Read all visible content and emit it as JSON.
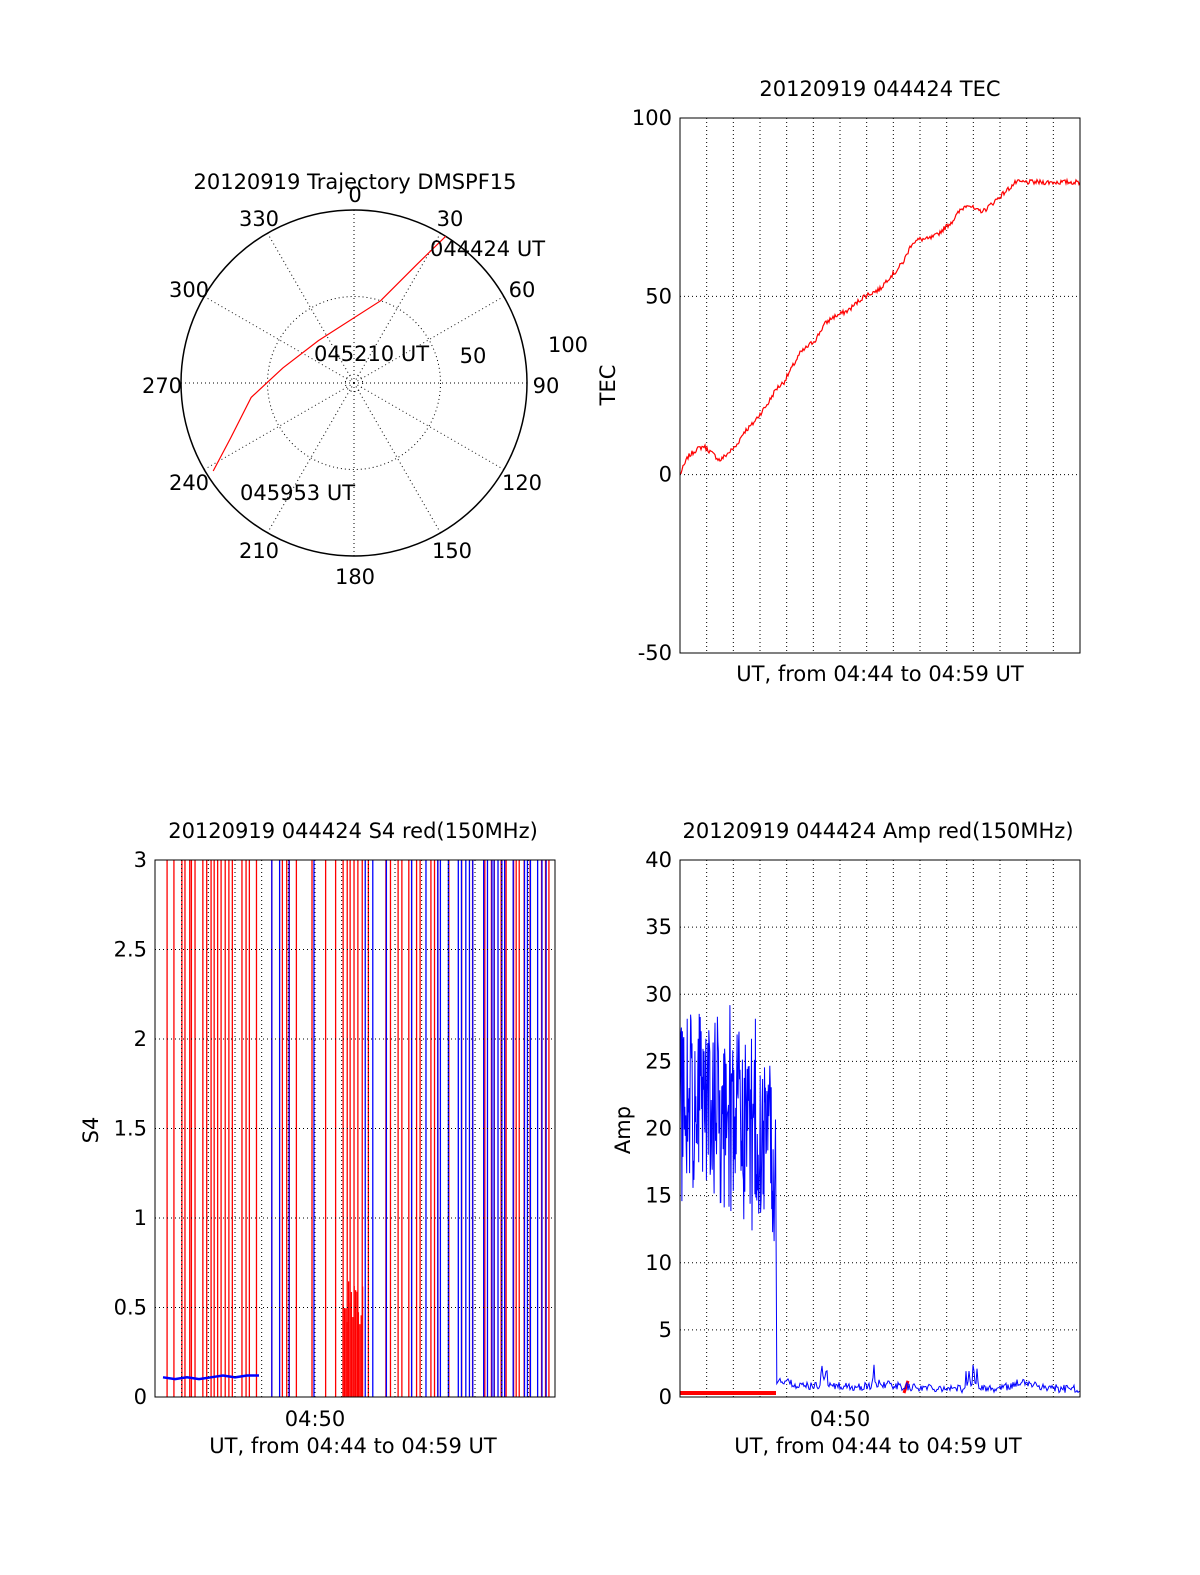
{
  "chart_data": [
    {
      "type": "polar",
      "title": "20120919 Trajectory DMSPF15",
      "r_max": 100,
      "ring_labels": [
        "50",
        "100"
      ],
      "angle_labels": [
        "0",
        "30",
        "60",
        "90",
        "120",
        "150",
        "180",
        "210",
        "240",
        "270",
        "300",
        "330"
      ],
      "series": [
        {
          "color": "#ff0000",
          "points": [
            {
              "az": 32,
              "r": 100
            },
            {
              "az": 28,
              "r": 78
            },
            {
              "az": 18,
              "r": 50
            },
            {
              "az": 320,
              "r": 32
            },
            {
              "az": 282,
              "r": 42
            },
            {
              "az": 262,
              "r": 60
            },
            {
              "az": 246,
              "r": 78
            },
            {
              "az": 238,
              "r": 96
            }
          ]
        }
      ],
      "annotations": [
        {
          "text": "044424 UT",
          "az": 30,
          "r": 100
        },
        {
          "text": "045210 UT",
          "az": 0,
          "r": 30
        },
        {
          "text": "045953 UT",
          "az": 238,
          "r": 96
        }
      ]
    },
    {
      "type": "line",
      "title": "20120919 044424 TEC",
      "xlabel": "UT, from 04:44 to 04:59 UT",
      "ylabel": "TEC",
      "ylim": [
        -50,
        100
      ],
      "yticks": [
        "100",
        "50",
        "0",
        "-50"
      ],
      "xlim": [
        0,
        100
      ],
      "grid": true,
      "series": [
        {
          "color": "#ff0000",
          "x": [
            0,
            2,
            4,
            6,
            8,
            10,
            12,
            14,
            16,
            18,
            20,
            22,
            24,
            26,
            28,
            30,
            32,
            34,
            36,
            38,
            40,
            42,
            44,
            46,
            48,
            50,
            52,
            54,
            56,
            58,
            60,
            62,
            64,
            66,
            68,
            70,
            72,
            74,
            76,
            78,
            80,
            82,
            84,
            86,
            88,
            90,
            92,
            94,
            96,
            98,
            100
          ],
          "y": [
            0,
            5,
            7,
            8,
            6,
            4,
            6,
            8,
            12,
            14,
            17,
            20,
            24,
            26,
            30,
            34,
            36,
            38,
            42,
            44,
            45,
            46,
            48,
            50,
            51,
            52,
            55,
            57,
            60,
            65,
            66,
            66,
            67,
            69,
            71,
            74,
            76,
            74,
            74,
            76,
            78,
            80,
            82,
            82,
            82,
            82,
            82,
            82,
            82,
            82,
            82
          ]
        }
      ]
    },
    {
      "type": "scatter",
      "title": "20120919 044424 S4 red(150MHz)",
      "xlabel": "UT, from 04:44 to 04:59 UT",
      "ylabel": "S4",
      "ylim": [
        0,
        3
      ],
      "yticks": [
        "3",
        "2.5",
        "2",
        "1.5",
        "1",
        "0.5",
        "0"
      ],
      "xtick_label": "04:50",
      "xtick_pos": 40,
      "grid": true,
      "series": [
        {
          "name": "red",
          "color": "#ff0000"
        },
        {
          "name": "blue",
          "color": "#0000ff",
          "x": [
            2,
            5,
            8,
            11,
            14,
            17,
            20,
            23,
            26
          ],
          "y": [
            0.11,
            0.1,
            0.11,
            0.1,
            0.11,
            0.12,
            0.11,
            0.12,
            0.12
          ]
        }
      ]
    },
    {
      "type": "line",
      "title": "20120919 044424 Amp red(150MHz)",
      "xlabel": "UT, from 04:44 to 04:59 UT",
      "ylabel": "Amp",
      "ylim": [
        0,
        40
      ],
      "yticks": [
        "40",
        "35",
        "30",
        "25",
        "20",
        "15",
        "10",
        "5",
        "0"
      ],
      "xtick_label": "04:50",
      "xtick_pos": 40,
      "grid": true,
      "series": [
        {
          "name": "red",
          "color": "#ff0000",
          "x": [
            0,
            24
          ],
          "y": [
            0.3,
            0.3
          ]
        },
        {
          "name": "blue",
          "color": "#0000ff",
          "x": [
            0,
            2,
            4,
            6,
            8,
            10,
            12,
            14,
            16,
            18,
            20,
            22,
            24,
            25,
            27,
            30,
            35,
            40,
            45,
            50,
            55,
            60,
            65,
            70,
            75,
            80,
            85,
            90,
            95,
            100
          ],
          "y": [
            22,
            23,
            23,
            22,
            22,
            22,
            21,
            21,
            21,
            20,
            20,
            20,
            19,
            1,
            0.8,
            0.5,
            0.6,
            0.5,
            0.4,
            0.7,
            0.5,
            0.4,
            0.4,
            0.3,
            0.4,
            0.3,
            0.8,
            0.5,
            0.3,
            0.3
          ]
        }
      ]
    }
  ]
}
